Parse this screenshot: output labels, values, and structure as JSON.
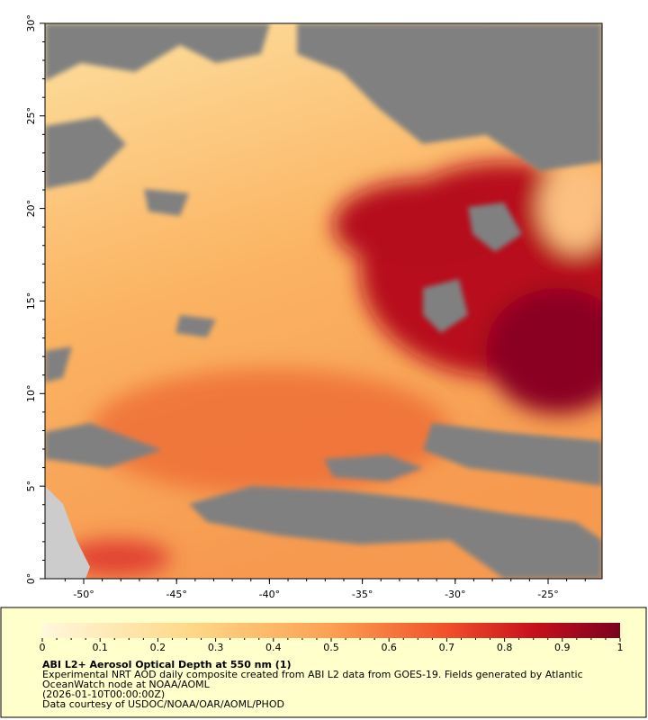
{
  "map": {
    "lat_ticks": [
      "0°",
      "5°",
      "10°",
      "15°",
      "20°",
      "25°",
      "30°"
    ],
    "lon_ticks": [
      "-50°",
      "-45°",
      "-40°",
      "-35°",
      "-30°",
      "-25°"
    ]
  },
  "colorbar": {
    "ticks": [
      "0",
      "0.1",
      "0.2",
      "0.3",
      "0.4",
      "0.5",
      "0.6",
      "0.7",
      "0.8",
      "0.9",
      "1"
    ]
  },
  "caption": {
    "title": "ABI L2+ Aerosol Optical Depth at 550 nm (1)",
    "lines": [
      "Experimental NRT AOD daily composite created from ABI L2 data from GOES-19. Fields generated by Atlantic",
      "OceanWatch node at NOAA/AOML",
      "(2026-01-10T00:00:00Z)",
      "Data courtesy of USDOC/NOAA/OAR/AOML/PHOD"
    ]
  }
}
